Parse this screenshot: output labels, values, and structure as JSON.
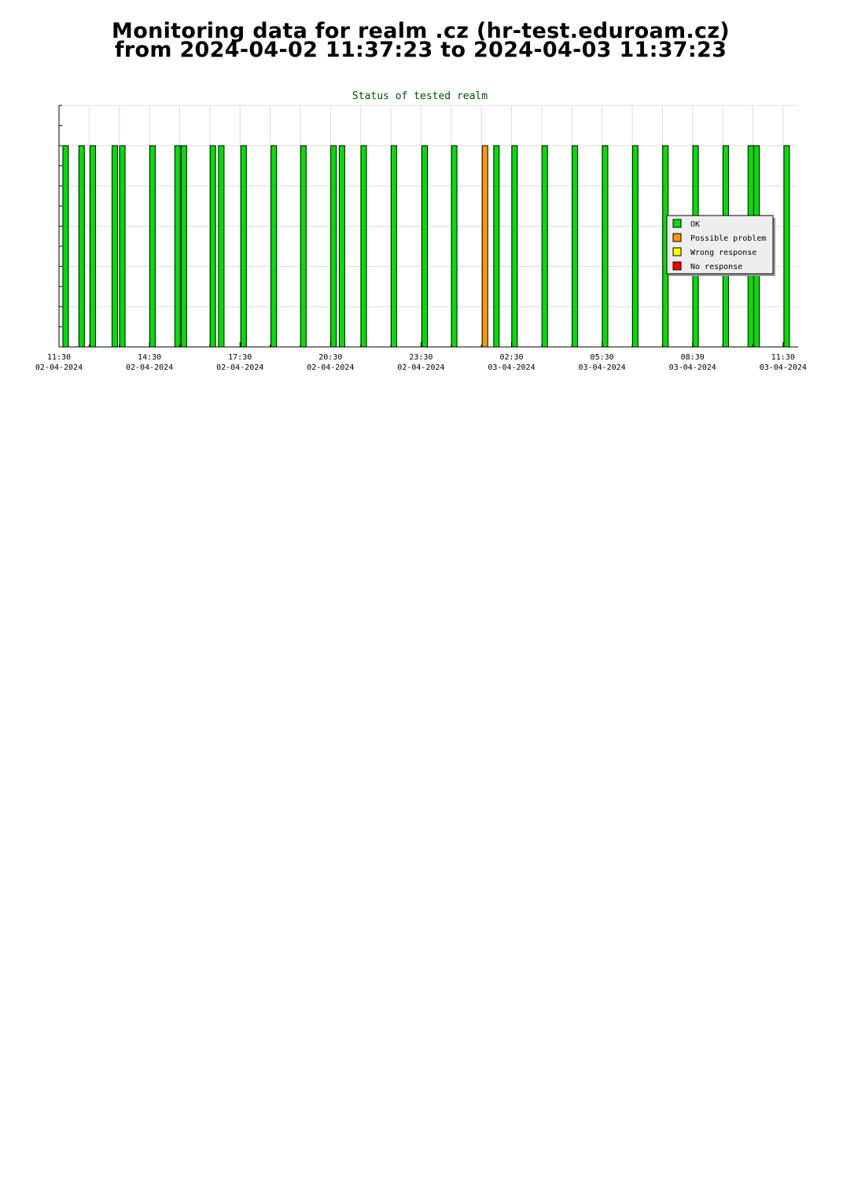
{
  "page": {
    "heading_line1": "Monitoring data for realm .cz  (hr-test.eduroam.cz)",
    "heading_line2": "from 2024-04-02 11:37:23 to 2024-04-03 11:37:23"
  },
  "chart_data": {
    "type": "bar",
    "title": "Status of tested realm",
    "xlabel": "",
    "ylabel": "",
    "x_range_hours": [
      11.5,
      36.0
    ],
    "ylim": [
      0,
      1.2
    ],
    "grid": true,
    "legend_placement": "right",
    "x_ticks": [
      {
        "hour": 11.5,
        "time": "11:30",
        "date": "02-04-2024"
      },
      {
        "hour": 14.5,
        "time": "14:30",
        "date": "02-04-2024"
      },
      {
        "hour": 17.5,
        "time": "17:30",
        "date": "02-04-2024"
      },
      {
        "hour": 20.5,
        "time": "20:30",
        "date": "02-04-2024"
      },
      {
        "hour": 23.5,
        "time": "23:30",
        "date": "02-04-2024"
      },
      {
        "hour": 26.5,
        "time": "02:30",
        "date": "03-04-2024"
      },
      {
        "hour": 29.5,
        "time": "05:30",
        "date": "03-04-2024"
      },
      {
        "hour": 32.5,
        "time": "08:30",
        "date": "03-04-2024"
      },
      {
        "hour": 35.5,
        "time": "11:30",
        "date": "03-04-2024"
      }
    ],
    "legend": [
      {
        "label": "OK",
        "color": "#00e000"
      },
      {
        "label": "Possible problem",
        "color": "#ff9900"
      },
      {
        "label": "Wrong response",
        "color": "#ffff00"
      },
      {
        "label": "No response",
        "color": "#ff0000"
      }
    ],
    "series": [
      {
        "name": "OK",
        "color": "#00e000",
        "hours": [
          11.72,
          12.25,
          12.62,
          13.35,
          13.6,
          14.6,
          15.43,
          15.64,
          16.6,
          16.88,
          17.62,
          18.62,
          19.6,
          20.6,
          20.88,
          21.6,
          22.6,
          23.62,
          24.6,
          26.0,
          26.6,
          27.6,
          28.6,
          29.6,
          30.6,
          31.6,
          32.6,
          33.6,
          34.43,
          34.62,
          35.62
        ],
        "values": [
          1,
          1,
          1,
          1,
          1,
          1,
          1,
          1,
          1,
          1,
          1,
          1,
          1,
          1,
          1,
          1,
          1,
          1,
          1,
          1,
          1,
          1,
          1,
          1,
          1,
          1,
          1,
          1,
          1,
          1,
          1
        ]
      },
      {
        "name": "Possible problem",
        "color": "#ff9900",
        "hours": [
          25.62
        ],
        "values": [
          1
        ]
      }
    ]
  }
}
